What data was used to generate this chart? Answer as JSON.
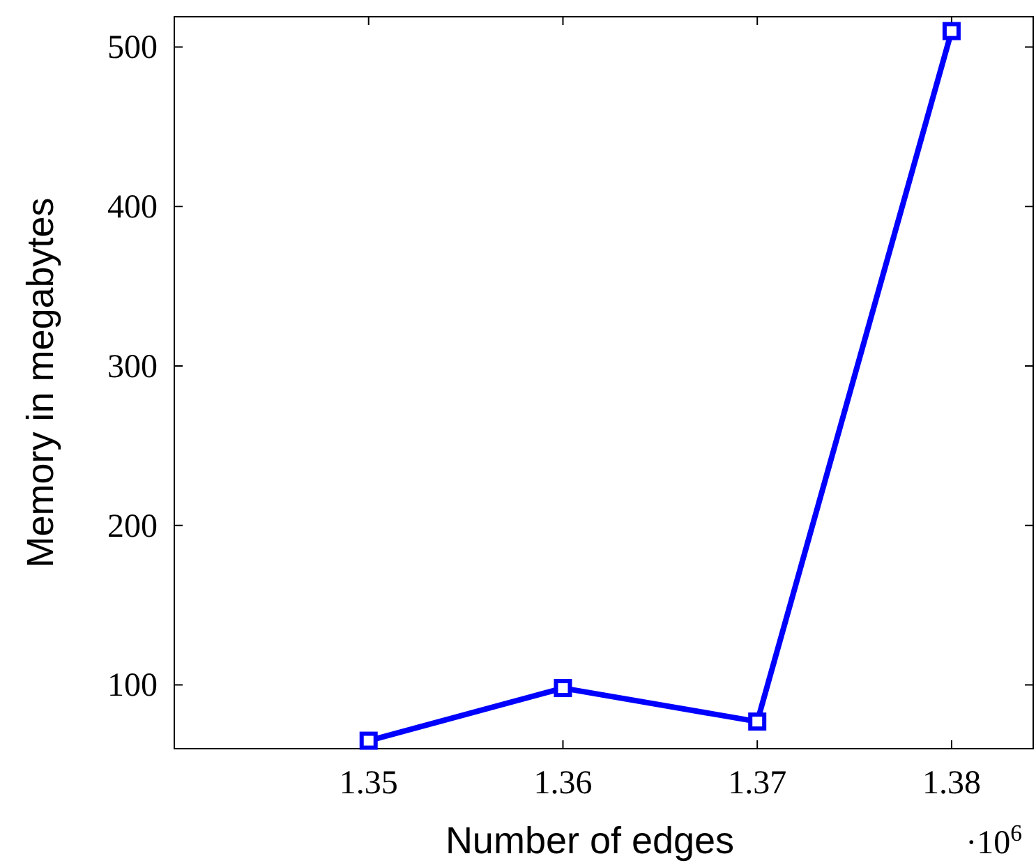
{
  "chart_data": {
    "type": "line",
    "xlabel": "Number of edges",
    "ylabel": "Memory in megabytes",
    "x": [
      1.35,
      1.36,
      1.37,
      1.38
    ],
    "series": [
      {
        "color": "#0000ff",
        "values": [
          65,
          98,
          77,
          510
        ]
      }
    ],
    "xlim": [
      1.34,
      1.3842
    ],
    "ylim": [
      60,
      519
    ],
    "xticks": [
      1.35,
      1.36,
      1.37,
      1.38
    ],
    "yticks": [
      100,
      200,
      300,
      400,
      500
    ],
    "annotations": [
      "·10$^{6}$"
    ],
    "marker": "square",
    "line_style": "solid",
    "grid": false
  }
}
